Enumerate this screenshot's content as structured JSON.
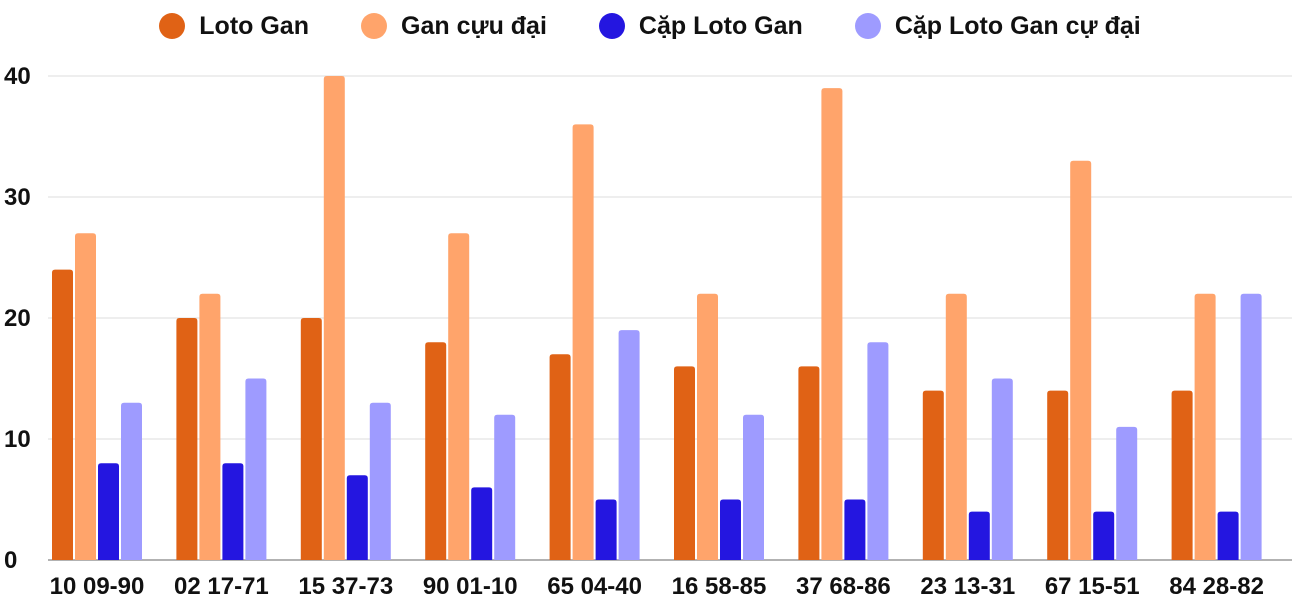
{
  "chart_data": {
    "type": "bar",
    "title": "",
    "xlabel": "",
    "ylabel": "",
    "ylim": [
      0,
      40
    ],
    "yticks": [
      0,
      10,
      20,
      30,
      40
    ],
    "grid": true,
    "legend_position": "top-center",
    "categories": [
      "10 09-90",
      "02 17-71",
      "15 37-73",
      "90 01-10",
      "65 04-40",
      "16 58-85",
      "37 68-86",
      "23 13-31",
      "67 15-51",
      "84 28-82"
    ],
    "series": [
      {
        "name": "Loto Gan",
        "color": "#e06215",
        "values": [
          24,
          20,
          20,
          18,
          17,
          16,
          16,
          14,
          14,
          14
        ]
      },
      {
        "name": "Gan cựu đại",
        "color": "#ffa46b",
        "values": [
          27,
          22,
          40,
          27,
          36,
          22,
          39,
          22,
          33,
          22
        ]
      },
      {
        "name": "Cặp Loto Gan",
        "color": "#2416e0",
        "values": [
          8,
          8,
          7,
          6,
          5,
          5,
          5,
          4,
          4,
          4
        ]
      },
      {
        "name": "Cặp Loto Gan cự đại",
        "color": "#9e9bff",
        "values": [
          13,
          15,
          13,
          12,
          19,
          12,
          18,
          15,
          11,
          22
        ]
      }
    ]
  }
}
